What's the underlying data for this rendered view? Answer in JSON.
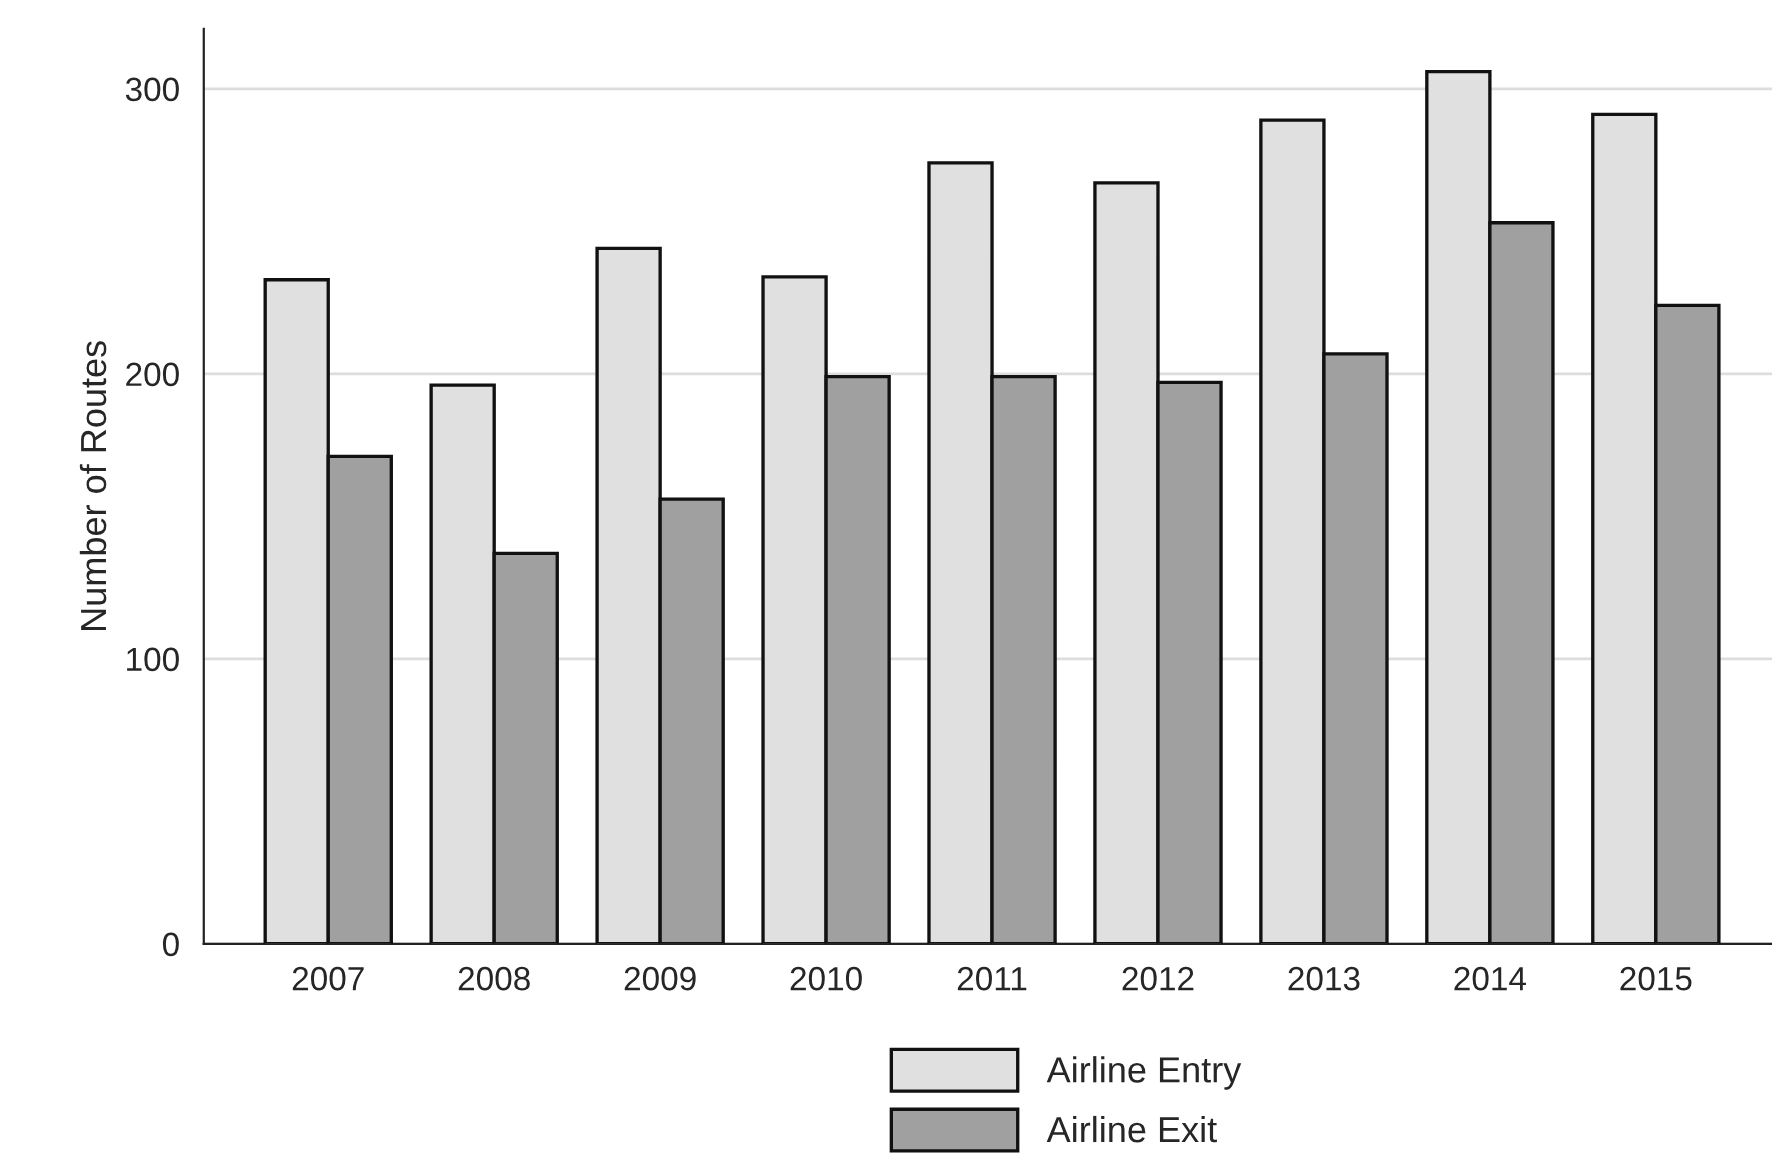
{
  "chart_data": {
    "type": "bar",
    "ylabel": "Number of Routes",
    "categories": [
      "2007",
      "2008",
      "2009",
      "2010",
      "2011",
      "2012",
      "2013",
      "2014",
      "2015"
    ],
    "series": [
      {
        "name": "Airline Entry",
        "color": "#e0e0e0",
        "values": [
          233,
          196,
          244,
          234,
          274,
          267,
          289,
          306,
          291
        ]
      },
      {
        "name": "Airline Exit",
        "color": "#a0a0a0",
        "values": [
          171,
          137,
          156,
          199,
          199,
          197,
          207,
          253,
          224
        ]
      }
    ],
    "ylim": [
      0,
      321
    ],
    "yticks": [
      0,
      100,
      200,
      300
    ],
    "grid": "y",
    "legend": "bottom"
  }
}
